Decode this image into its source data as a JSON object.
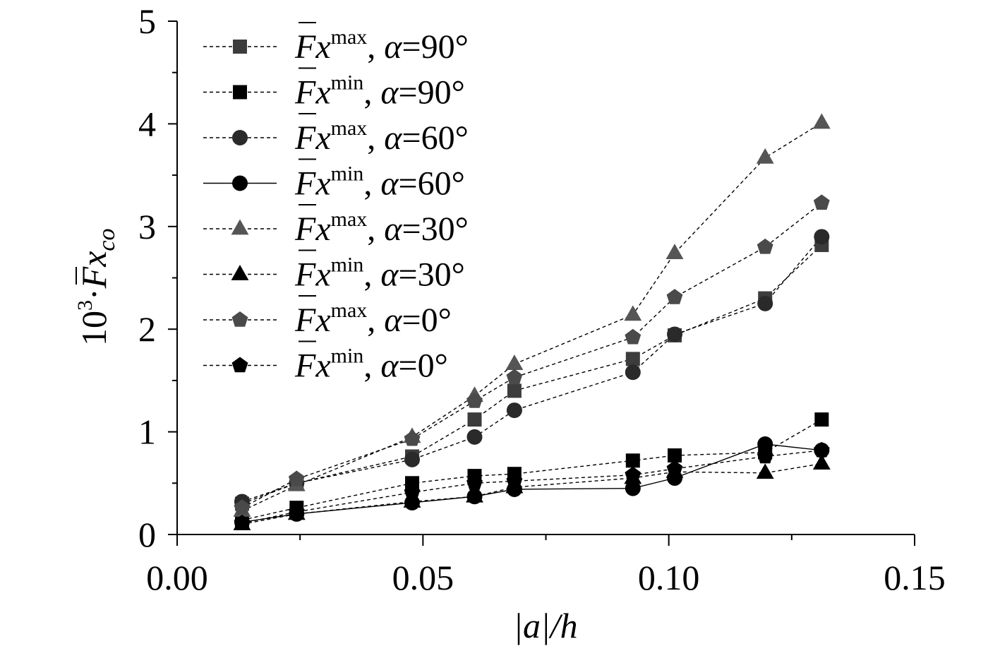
{
  "chart_data": {
    "type": "scatter",
    "xlabel": "|a|/h",
    "ylabel": "10³·F̅x_co",
    "ylabel_parts": {
      "prefix": "10",
      "exp": "3",
      "dot": "·",
      "symbol": "F",
      "var": "x",
      "sub": "co"
    },
    "xlim": [
      0.0,
      0.15
    ],
    "ylim": [
      0,
      5
    ],
    "xticks": [
      0.0,
      0.05,
      0.1,
      0.15
    ],
    "xtick_labels": [
      "0.00",
      "0.05",
      "0.10",
      "0.15"
    ],
    "x_minor_ticks": [
      0.025,
      0.075,
      0.125
    ],
    "yticks": [
      0,
      1,
      2,
      3,
      4,
      5
    ],
    "ytick_labels": [
      "0",
      "1",
      "2",
      "3",
      "4",
      "5"
    ],
    "y_minor_ticks": [
      0.5,
      1.5,
      2.5,
      3.5,
      4.5
    ],
    "grid": false,
    "legend_position": "top-left",
    "x": [
      0.0132,
      0.0243,
      0.0478,
      0.0605,
      0.0686,
      0.0927,
      0.1012,
      0.1196,
      0.1311
    ],
    "series": [
      {
        "name": "max-90",
        "marker": "square",
        "color": "#3c3c3c",
        "line": "dashed",
        "legend": {
          "sym": "F",
          "var": "x",
          "sup": "max",
          "alpha": "α",
          "rest": "=90°"
        },
        "values": [
          0.3,
          0.5,
          0.76,
          1.12,
          1.4,
          1.71,
          1.94,
          2.3,
          2.82
        ]
      },
      {
        "name": "min-90",
        "marker": "square",
        "color": "#000000",
        "line": "dashed",
        "legend": {
          "sym": "F",
          "var": "x",
          "sup": "min",
          "alpha": "α",
          "rest": "=90°"
        },
        "values": [
          0.14,
          0.26,
          0.5,
          0.57,
          0.59,
          0.72,
          0.77,
          0.8,
          1.12
        ]
      },
      {
        "name": "max-60",
        "marker": "circle",
        "color": "#2a2a2a",
        "line": "dashed",
        "legend": {
          "sym": "F",
          "var": "x",
          "sup": "max",
          "alpha": "α",
          "rest": "=60°"
        },
        "values": [
          0.32,
          0.5,
          0.73,
          0.95,
          1.21,
          1.58,
          1.95,
          2.25,
          2.9
        ]
      },
      {
        "name": "min-60",
        "marker": "circle",
        "color": "#000000",
        "line": "solid",
        "legend": {
          "sym": "F",
          "var": "x",
          "sup": "min",
          "alpha": "α",
          "rest": "=60°"
        },
        "values": [
          0.12,
          0.2,
          0.31,
          0.37,
          0.44,
          0.45,
          0.55,
          0.88,
          0.82
        ]
      },
      {
        "name": "max-30",
        "marker": "triangle",
        "color": "#555555",
        "line": "dashed",
        "legend": {
          "sym": "F",
          "var": "x",
          "sup": "max",
          "alpha": "α",
          "rest": "=30°"
        },
        "values": [
          0.23,
          0.48,
          0.95,
          1.35,
          1.66,
          2.14,
          2.74,
          3.67,
          4.01
        ]
      },
      {
        "name": "min-30",
        "marker": "triangle",
        "color": "#000000",
        "line": "dashed",
        "legend": {
          "sym": "F",
          "var": "x",
          "sup": "min",
          "alpha": "α",
          "rest": "=30°"
        },
        "values": [
          0.1,
          0.2,
          0.32,
          0.37,
          0.46,
          0.55,
          0.61,
          0.6,
          0.69
        ]
      },
      {
        "name": "max-0",
        "marker": "pentagon",
        "color": "#4a4a4a",
        "line": "dashed",
        "legend": {
          "sym": "F",
          "var": "x",
          "sup": "max",
          "alpha": "α",
          "rest": "=0°"
        },
        "values": [
          0.26,
          0.54,
          0.93,
          1.3,
          1.53,
          1.92,
          2.31,
          2.8,
          3.23
        ]
      },
      {
        "name": "min-0",
        "marker": "pentagon",
        "color": "#000000",
        "line": "dashed",
        "legend": {
          "sym": "F",
          "var": "x",
          "sup": "min",
          "alpha": "α",
          "rest": "=0°"
        },
        "values": [
          0.11,
          0.22,
          0.41,
          0.5,
          0.52,
          0.58,
          0.64,
          0.76,
          0.82
        ]
      }
    ]
  }
}
